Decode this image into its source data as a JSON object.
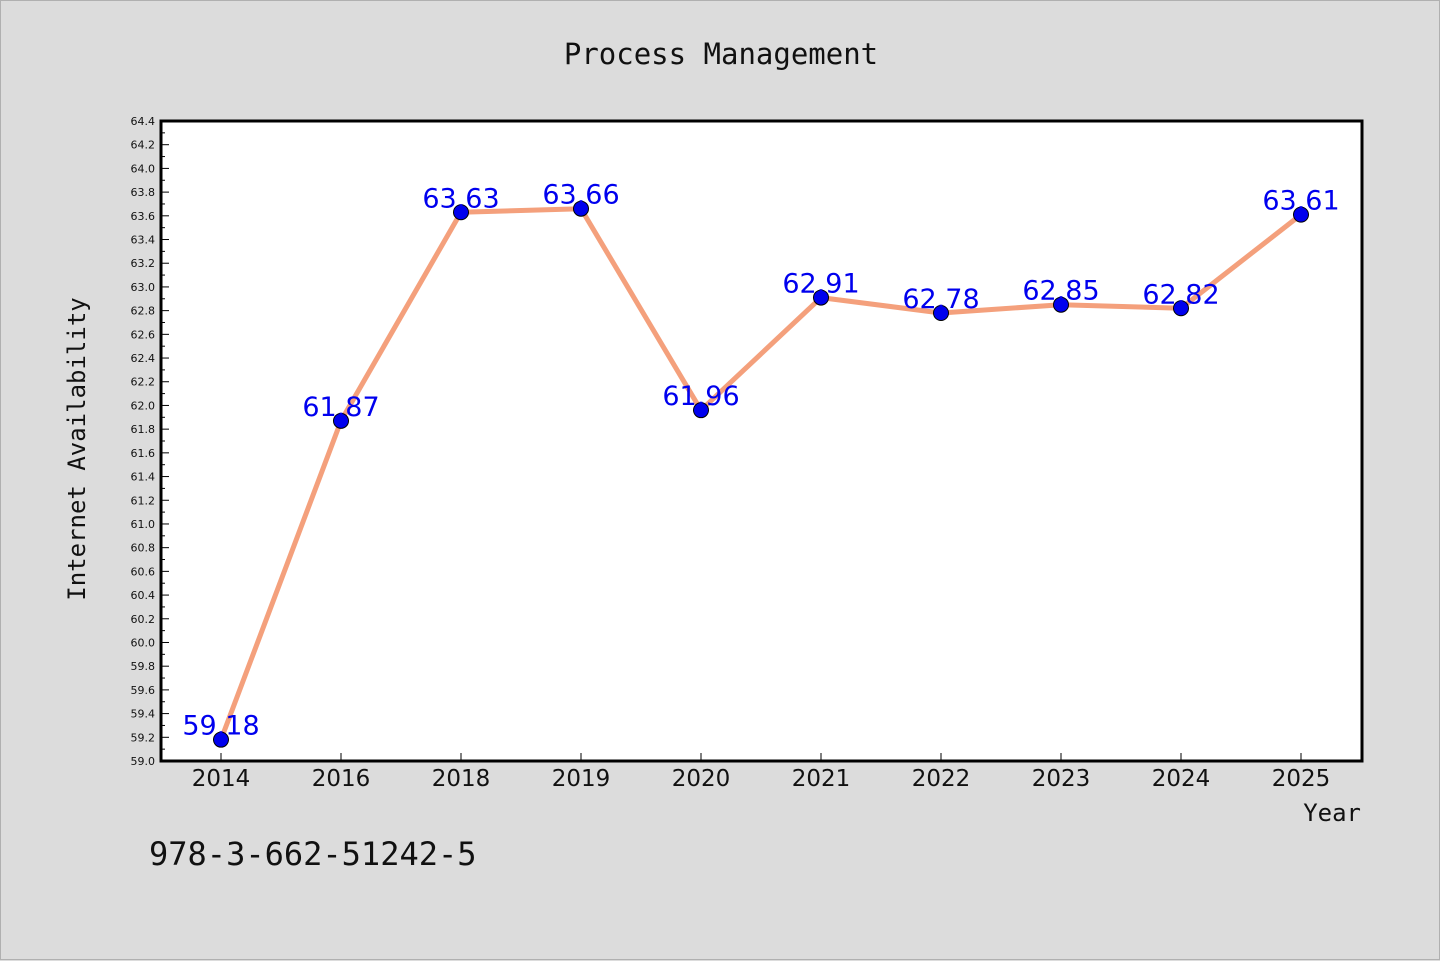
{
  "chart_data": {
    "type": "line",
    "title": "Process Management",
    "xlabel": "Year",
    "ylabel": "Internet Availability",
    "categories": [
      "2014",
      "2016",
      "2018",
      "2019",
      "2020",
      "2021",
      "2022",
      "2023",
      "2024",
      "2025"
    ],
    "values": [
      59.18,
      61.87,
      63.63,
      63.66,
      61.96,
      62.91,
      62.78,
      62.85,
      62.82,
      63.61
    ],
    "data_labels": [
      "59.18",
      "61.87",
      "63.63",
      "63.66",
      "61.96",
      "62.91",
      "62.78",
      "62.85",
      "62.82",
      "63.61"
    ],
    "ylim": [
      59.0,
      64.4
    ],
    "ytick_step": 0.2,
    "ytick_labels": [
      "59.0",
      "59.2",
      "59.4",
      "59.6",
      "59.8",
      "60.0",
      "60.2",
      "60.4",
      "60.6",
      "60.8",
      "61.0",
      "61.2",
      "61.4",
      "61.6",
      "61.8",
      "62.0",
      "62.2",
      "62.4",
      "62.6",
      "62.8",
      "63.0",
      "63.2",
      "63.4",
      "63.6",
      "63.8",
      "64.0",
      "64.2",
      "64.4"
    ],
    "grid": false,
    "legend": "none",
    "colors": {
      "line": "#f4a07c",
      "marker": "#0000ee",
      "label": "#0000ee",
      "plot_bg": "#ffffff",
      "page_bg": "#dcdcdc"
    }
  },
  "footnote": "978-3-662-51242-5"
}
